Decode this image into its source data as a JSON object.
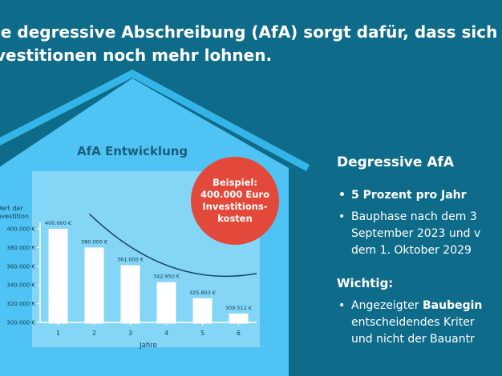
{
  "headline": {
    "line1": "ie degressive Abschreibung (AfA) sorgt dafür, dass sich",
    "line2": "vestitionen noch mehr lohnen."
  },
  "colors": {
    "background": "#0f6b8a",
    "house_fill": "#4fc3f3",
    "house_outline": "#35b4e8",
    "plot_panel": "#ffffff",
    "bar": "#ffffff",
    "curve": "#1c3f6e",
    "badge": "#e3493a"
  },
  "badge": {
    "text": "Beispiel:\n400.000 Euro\nInvestitions-\nkosten"
  },
  "chart_data": {
    "type": "bar",
    "title": "AfA Entwicklung",
    "ylabel": "Wert der\nInvestition",
    "xlabel": "Jahre",
    "categories": [
      "1",
      "2",
      "3",
      "4",
      "5",
      "6"
    ],
    "values": [
      400000,
      380000,
      361000,
      342950,
      325803,
      309512
    ],
    "data_labels": [
      "400.000 €",
      "380.000 €",
      "361.000 €",
      "342.950 €",
      "325.803 €",
      "309.512 €"
    ],
    "ylim": [
      300000,
      400000
    ],
    "yticks": [
      300000,
      320000,
      340000,
      360000,
      380000,
      400000
    ],
    "ytick_labels": [
      "300.000 €",
      "320.000 €",
      "340.000 €",
      "360.000 €",
      "380.000 €",
      "400.000 €"
    ],
    "grid": false,
    "trend_curve": true
  },
  "right_panel": {
    "heading": "Degressive AfA",
    "bullet1": "5 Prozent pro Jahr",
    "bullet2_lines": [
      "Bauphase nach dem 3",
      "September 2023 und v",
      "dem 1. Oktober 2029"
    ],
    "subheading": "Wichtig:",
    "bullet3_prefix": "Angezeigter ",
    "bullet3_bold": "Baubegin",
    "bullet3_lines": [
      "entscheidendes Kriter",
      "und nicht der Bauantr"
    ]
  }
}
